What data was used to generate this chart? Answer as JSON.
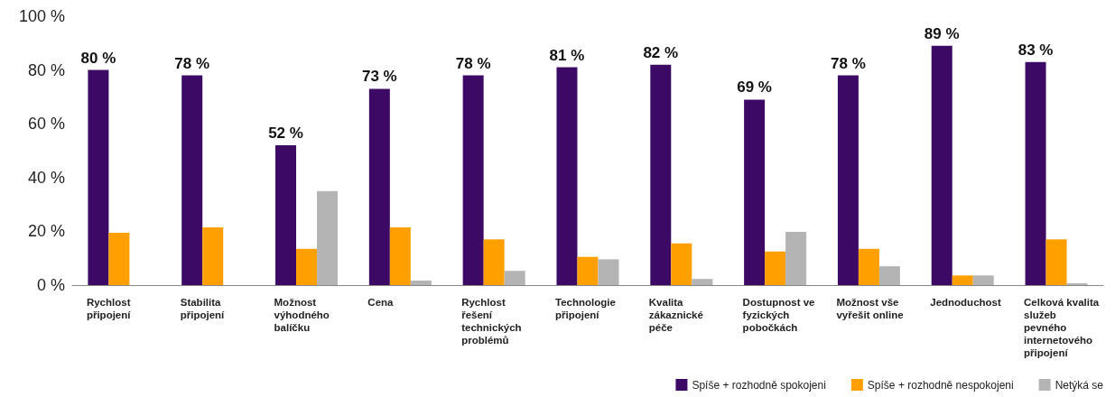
{
  "chart_data": {
    "type": "bar",
    "categories": [
      "Rychlost připojení",
      "Stabilita připojení",
      "Možnost výhodného balíčku",
      "Cena",
      "Rychlost řešení technických problémů",
      "Technologie připojení",
      "Kvalita zákaznické péče",
      "Dostupnost ve fyzických pobočkách",
      "Možnost vše vyřešit online",
      "Jednoduchost",
      "Celková kvalita služeb pevného internetového připojení"
    ],
    "series": [
      {
        "name": "Spíše + rozhodně spokojeni",
        "color": "#3c0a64",
        "values": [
          80,
          78,
          52,
          73,
          78,
          81,
          82,
          69,
          78,
          89,
          83
        ],
        "value_labels": [
          "80 %",
          "78 %",
          "52 %",
          "73 %",
          "78 %",
          "81 %",
          "82 %",
          "69 %",
          "78 %",
          "89 %",
          "83 %"
        ]
      },
      {
        "name": "Spíše + rozhodně nespokojeni",
        "color": "#ffa000",
        "values": [
          19.5,
          21.5,
          13.5,
          21.5,
          17,
          10.5,
          15.5,
          12.5,
          13.5,
          3.6,
          17
        ]
      },
      {
        "name": "Netýká se",
        "color": "#b4b4b4",
        "values": [
          0,
          0,
          35,
          1.7,
          5.3,
          9.6,
          2.3,
          19.8,
          7,
          3.6,
          0.7
        ]
      }
    ],
    "ylim": [
      0,
      100
    ],
    "yticks": [
      {
        "value": 0,
        "label": "0 %"
      },
      {
        "value": 20,
        "label": "20 %"
      },
      {
        "value": 40,
        "label": "40 %"
      },
      {
        "value": 60,
        "label": "60 %"
      },
      {
        "value": 80,
        "label": "80 %"
      },
      {
        "value": 100,
        "label": "100 %"
      }
    ],
    "grid": false,
    "legend": "bottom right"
  }
}
